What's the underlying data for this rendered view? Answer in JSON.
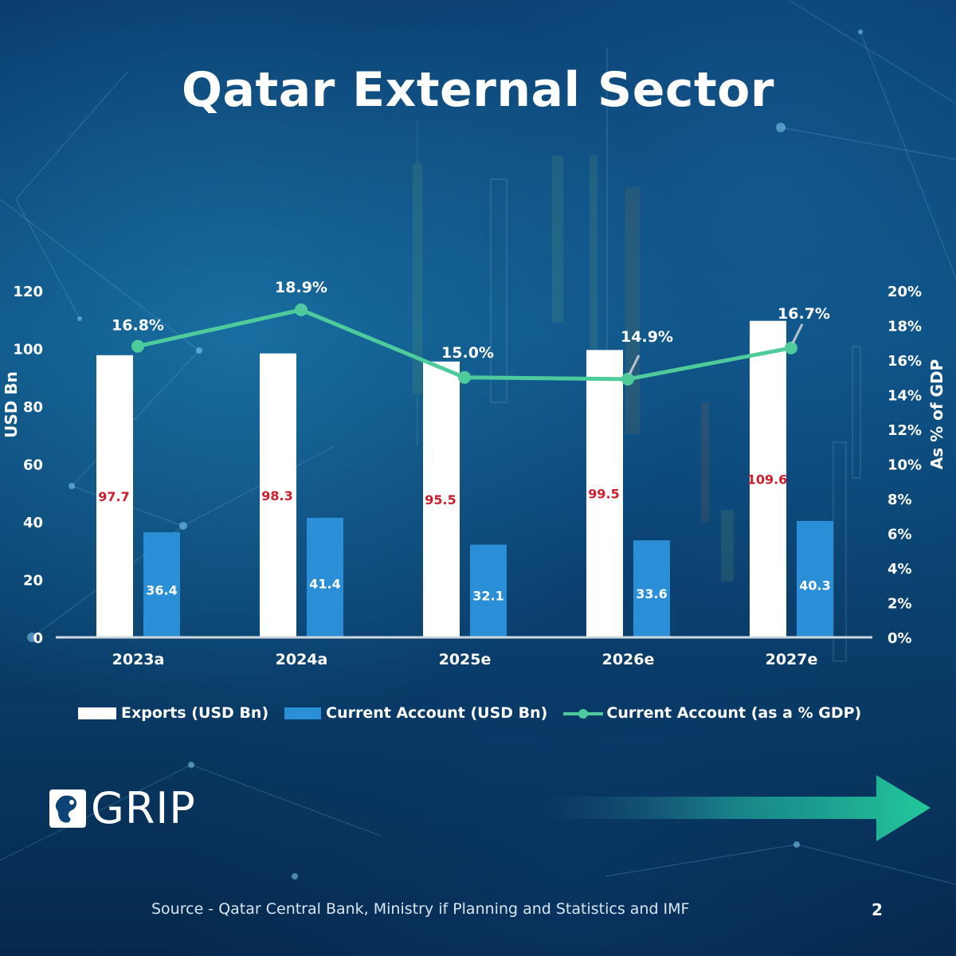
{
  "title": "Qatar External Sector",
  "chart_data": {
    "type": "bar",
    "categories": [
      "2023a",
      "2024a",
      "2025e",
      "2026e",
      "2027e"
    ],
    "series": [
      {
        "name": "Exports (USD Bn)",
        "kind": "bar",
        "axis": "left",
        "color": "#ffffff",
        "values": [
          97.7,
          98.3,
          95.5,
          99.5,
          109.6
        ],
        "labels": [
          "97.7",
          "98.3",
          "95.5",
          "99.5",
          "109.6"
        ]
      },
      {
        "name": "Current Account (USD Bn)",
        "kind": "bar",
        "axis": "left",
        "color": "#2a8fd6",
        "values": [
          36.4,
          41.4,
          32.1,
          33.6,
          40.3
        ],
        "labels": [
          "36.4",
          "41.4",
          "32.1",
          "33.6",
          "40.3"
        ]
      },
      {
        "name": "Current Account (as a % GDP)",
        "kind": "line",
        "axis": "right",
        "color": "#4ecb9b",
        "values": [
          16.8,
          18.9,
          15.0,
          14.9,
          16.7
        ],
        "labels": [
          "16.8%",
          "18.9%",
          "15.0%",
          "14.9%",
          "16.7%"
        ]
      }
    ],
    "ylabel": "USD Bn",
    "ylabel_right": "As % of GDP",
    "ylim": [
      0,
      120
    ],
    "ylim_right": [
      0,
      20
    ],
    "yticks": [
      "0",
      "20",
      "40",
      "60",
      "80",
      "100",
      "120"
    ],
    "yticks_right": [
      "0%",
      "2%",
      "4%",
      "6%",
      "8%",
      "10%",
      "12%",
      "14%",
      "16%",
      "18%",
      "20%"
    ],
    "grid": false,
    "legend_position": "bottom"
  },
  "legend": {
    "exports": "Exports (USD Bn)",
    "current_account": "Current Account (USD Bn)",
    "current_account_pct": "Current Account (as a % GDP)"
  },
  "colors": {
    "exports": "#ffffff",
    "current_account": "#2a8fd6",
    "line": "#4ecb9b",
    "export_label": "#cc1f2d",
    "arrow": "#22c99a"
  },
  "logo": {
    "text": "GRIP",
    "icon": "grip-logo-icon"
  },
  "source": "Source - Qatar Central Bank, Ministry if Planning and Statistics and IMF",
  "page_number": "2"
}
